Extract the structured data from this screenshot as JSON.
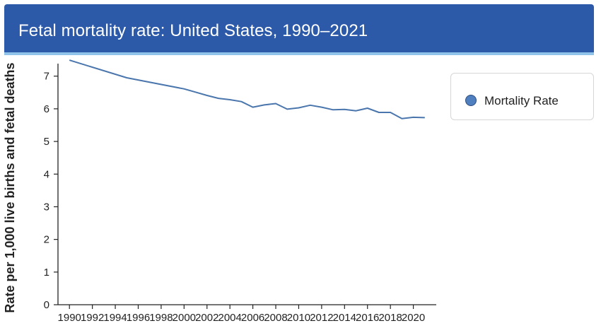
{
  "chart_data": {
    "type": "line",
    "title": "Fetal mortality rate: United States, 1990–2021",
    "xlabel": "",
    "ylabel": "Rate per 1,000 live births and fetal deaths",
    "xlim": [
      1989,
      2022
    ],
    "ylim": [
      0,
      7.6
    ],
    "xticks": [
      1990,
      1992,
      1994,
      1996,
      1998,
      2000,
      2002,
      2004,
      2006,
      2008,
      2010,
      2012,
      2014,
      2016,
      2018,
      2020
    ],
    "xtick_labels": [
      "1990",
      "1992",
      "1994",
      "1996",
      "1998",
      "2000",
      "2002",
      "2004",
      "2006",
      "2008",
      "2010",
      "2012",
      "2014",
      "2016",
      "2018",
      "2020"
    ],
    "yticks": [
      0,
      1,
      2,
      3,
      4,
      5,
      6,
      7
    ],
    "ytick_labels": [
      "0",
      "1",
      "2",
      "3",
      "4",
      "5",
      "6",
      "7"
    ],
    "legend": {
      "position": "right",
      "entries": [
        "Mortality Rate"
      ]
    },
    "series": [
      {
        "name": "Mortality Rate",
        "color": "#4a76ad",
        "x": [
          1990,
          1995,
          2000,
          2001,
          2002,
          2003,
          2004,
          2005,
          2006,
          2007,
          2008,
          2009,
          2010,
          2011,
          2012,
          2013,
          2014,
          2015,
          2016,
          2017,
          2018,
          2019,
          2020,
          2021
        ],
        "values": [
          7.49,
          6.95,
          6.61,
          6.51,
          6.41,
          6.32,
          6.28,
          6.22,
          6.05,
          6.12,
          6.16,
          5.99,
          6.03,
          6.11,
          6.05,
          5.97,
          5.98,
          5.94,
          6.02,
          5.89,
          5.89,
          5.7,
          5.74,
          5.73
        ]
      }
    ]
  }
}
